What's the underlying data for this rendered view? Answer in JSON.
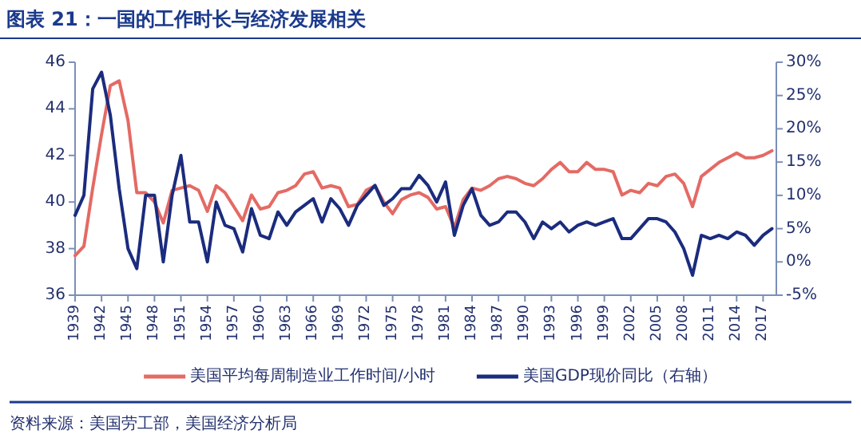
{
  "chart_data": {
    "type": "line",
    "title": "图表 21：一国的工作时长与经济发展相关",
    "annotations": [
      "资料来源：美国劳工部，美国经济分析局"
    ],
    "x": [
      1939,
      1940,
      1941,
      1942,
      1943,
      1944,
      1945,
      1946,
      1947,
      1948,
      1949,
      1950,
      1951,
      1952,
      1953,
      1954,
      1955,
      1956,
      1957,
      1958,
      1959,
      1960,
      1961,
      1962,
      1963,
      1964,
      1965,
      1966,
      1967,
      1968,
      1969,
      1970,
      1971,
      1972,
      1973,
      1974,
      1975,
      1976,
      1977,
      1978,
      1979,
      1980,
      1981,
      1982,
      1983,
      1984,
      1985,
      1986,
      1987,
      1988,
      1989,
      1990,
      1991,
      1992,
      1993,
      1994,
      1995,
      1996,
      1997,
      1998,
      1999,
      2000,
      2001,
      2002,
      2003,
      2004,
      2005,
      2006,
      2007,
      2008,
      2009,
      2010,
      2011,
      2012,
      2013,
      2014,
      2015,
      2016,
      2017,
      2018
    ],
    "series": [
      {
        "name": "美国平均每周制造业工作时间/小时",
        "color": "#e46a64",
        "values": [
          37.7,
          38.1,
          40.6,
          42.9,
          45.0,
          45.2,
          43.5,
          40.4,
          40.4,
          40.0,
          39.1,
          40.5,
          40.6,
          40.7,
          40.5,
          39.6,
          40.7,
          40.4,
          39.8,
          39.2,
          40.3,
          39.7,
          39.8,
          40.4,
          40.5,
          40.7,
          41.2,
          41.3,
          40.6,
          40.7,
          40.6,
          39.8,
          39.9,
          40.5,
          40.7,
          40.0,
          39.5,
          40.1,
          40.3,
          40.4,
          40.2,
          39.7,
          39.8,
          38.9,
          40.1,
          40.6,
          40.5,
          40.7,
          41.0,
          41.1,
          41.0,
          40.8,
          40.7,
          41.0,
          41.4,
          41.7,
          41.3,
          41.3,
          41.7,
          41.4,
          41.4,
          41.3,
          40.3,
          40.5,
          40.4,
          40.8,
          40.7,
          41.1,
          41.2,
          40.8,
          39.8,
          41.1,
          41.4,
          41.7,
          41.9,
          42.1,
          41.9,
          41.9,
          42.0,
          42.2
        ]
      },
      {
        "name": "美国GDP现价同比（右轴）",
        "color": "#1b2c7e",
        "axis": "y2",
        "values": [
          7,
          10,
          26,
          28.5,
          22,
          11,
          2,
          -1,
          10,
          10,
          0,
          10,
          16,
          6,
          6,
          0,
          9,
          5.5,
          5,
          1.5,
          8,
          4,
          3.5,
          7.5,
          5.5,
          7.5,
          8.5,
          9.5,
          6,
          9.5,
          8,
          5.5,
          8.5,
          10,
          11.5,
          8.5,
          9.5,
          11,
          11,
          13,
          11.5,
          9,
          12,
          4,
          8.5,
          11,
          7,
          5.5,
          6,
          7.5,
          7.5,
          6,
          3.5,
          6,
          5,
          6,
          4.5,
          5.5,
          6,
          5.5,
          6,
          6.5,
          3.5,
          3.5,
          5,
          6.5,
          6.5,
          6,
          4.5,
          2,
          -2,
          4,
          3.5,
          4,
          3.5,
          4.5,
          4,
          2.5,
          4,
          5
        ]
      }
    ],
    "xlim": [
      1939,
      2018.5
    ],
    "xticks": [
      1939,
      1942,
      1945,
      1948,
      1951,
      1954,
      1957,
      1960,
      1963,
      1966,
      1969,
      1972,
      1975,
      1978,
      1981,
      1984,
      1987,
      1990,
      1993,
      1996,
      1999,
      2002,
      2005,
      2008,
      2011,
      2014,
      2017
    ],
    "ylim": [
      36,
      46
    ],
    "yticks": [
      36,
      38,
      40,
      42,
      44,
      46
    ],
    "y2lim": [
      -5,
      30
    ],
    "y2ticks": [
      {
        "value": -5,
        "label": "-5%"
      },
      {
        "value": 0,
        "label": "0%"
      },
      {
        "value": 5,
        "label": "5%"
      },
      {
        "value": 10,
        "label": "10%"
      },
      {
        "value": 15,
        "label": "15%"
      },
      {
        "value": 20,
        "label": "20%"
      },
      {
        "value": 25,
        "label": "25%"
      },
      {
        "value": 30,
        "label": "30%"
      }
    ],
    "legend": "bottom"
  }
}
